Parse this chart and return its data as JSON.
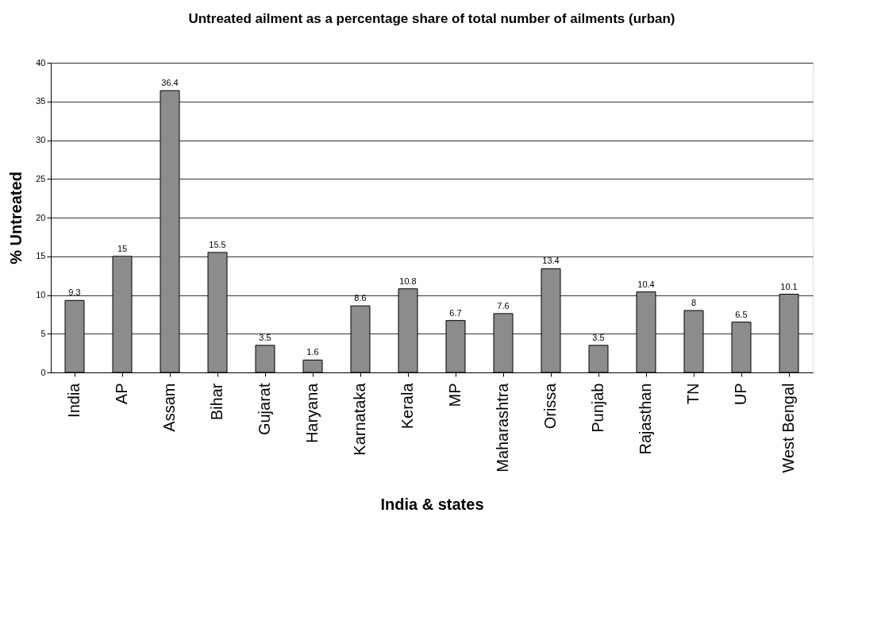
{
  "chart_data": {
    "type": "bar",
    "title": "Untreated ailment as a percentage share of total number of ailments (urban)",
    "xlabel": "India & states",
    "ylabel": "% Untreated",
    "categories": [
      "India",
      "AP",
      "Assam",
      "Bihar",
      "Gujarat",
      "Haryana",
      "Karnataka",
      "Kerala",
      "MP",
      "Maharashtra",
      "Orissa",
      "Punjab",
      "Rajasthan",
      "TN",
      "UP",
      "West Bengal"
    ],
    "values": [
      9.3,
      15,
      36.4,
      15.5,
      3.5,
      1.6,
      8.6,
      10.8,
      6.7,
      7.6,
      13.4,
      3.5,
      10.4,
      8,
      6.5,
      10.1
    ],
    "color": "#8c8c8c",
    "ylim": [
      0,
      40
    ],
    "yticks": [
      0,
      5,
      10,
      15,
      20,
      25,
      30,
      35,
      40
    ],
    "grid": "y",
    "data_labels": true
  }
}
